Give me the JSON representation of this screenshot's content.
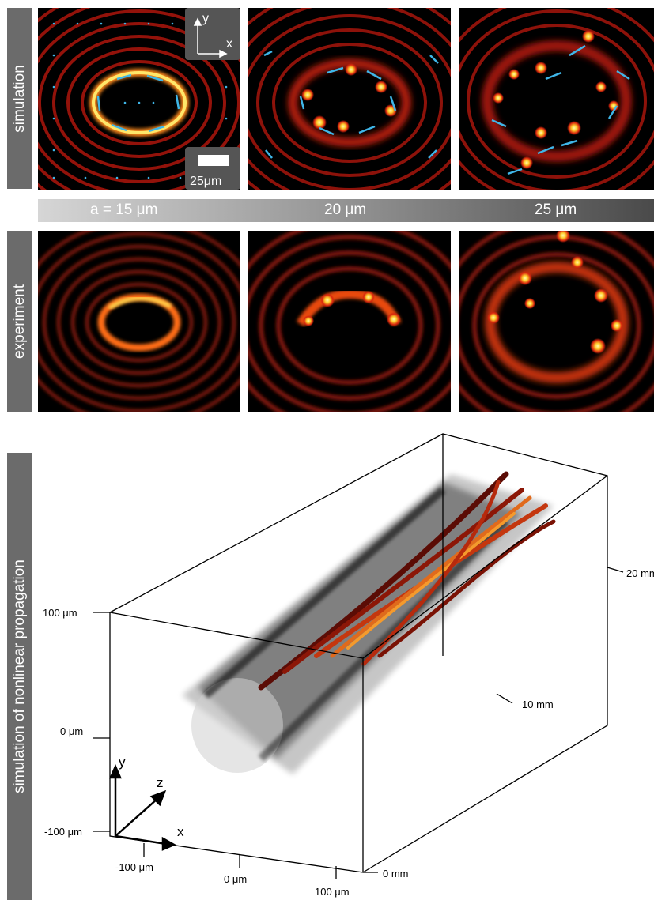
{
  "rows": {
    "simulation_label": "simulation",
    "experiment_label": "experiment",
    "nonlinear_label": "simulation of nonlinear propagation"
  },
  "inset": {
    "axis_y": "y",
    "axis_x": "x",
    "scale_bar": "25μm"
  },
  "radius_bar": {
    "a15": "a = 15 μm",
    "a20": "20 μm",
    "a25": "25 μm"
  },
  "propagation_plot": {
    "y_ticks": [
      "100 μm",
      "0 μm",
      "-100 μm"
    ],
    "x_ticks": [
      "-100 μm",
      "0 μm",
      "100 μm"
    ],
    "z_ticks": [
      "0 mm",
      "10 mm",
      "20 mm"
    ],
    "axis_x": "x",
    "axis_y": "y",
    "axis_z": "z"
  },
  "colors": {
    "arrow": "#3fb6e8",
    "ring": "#c0200e",
    "hot": "#ffd23c",
    "label_bar": "#6b6b6b"
  }
}
